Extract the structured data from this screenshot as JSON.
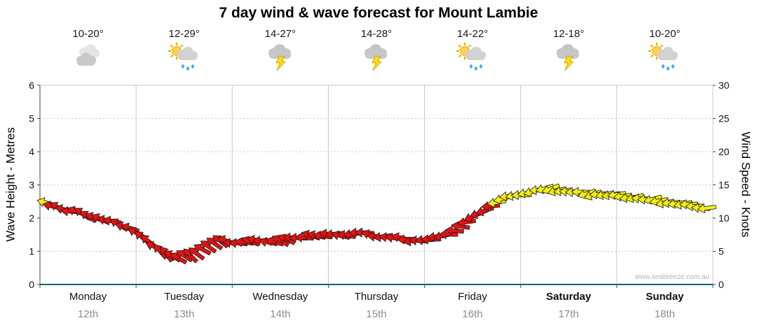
{
  "chart_data": {
    "type": "wind-arrows",
    "title": "7 day wind & wave forecast for Mount Lambie",
    "watermark": "www.seabreeze.com.au",
    "left_axis": {
      "label": "Wave Height - Metres",
      "ticks": [
        0,
        1,
        2,
        3,
        4,
        5,
        6
      ],
      "max": 6
    },
    "right_axis": {
      "label": "Wind Speed - Knots",
      "ticks": [
        0,
        5,
        10,
        15,
        20,
        25,
        30
      ],
      "max": 30
    },
    "colors": {
      "r": "#e41212",
      "y": "#f2ee12"
    },
    "days": [
      {
        "name": "Monday",
        "date": "12th",
        "temp": "10-20°",
        "icon": "cloudy",
        "bold": false
      },
      {
        "name": "Tuesday",
        "date": "13th",
        "temp": "12-29°",
        "icon": "sun-showers",
        "bold": false
      },
      {
        "name": "Wednesday",
        "date": "14th",
        "temp": "14-27°",
        "icon": "thunderstorm",
        "bold": false
      },
      {
        "name": "Thursday",
        "date": "15th",
        "temp": "14-28°",
        "icon": "thunderstorm",
        "bold": false
      },
      {
        "name": "Friday",
        "date": "16th",
        "temp": "14-22°",
        "icon": "sun-showers",
        "bold": false
      },
      {
        "name": "Saturday",
        "date": "17th",
        "temp": "12-18°",
        "icon": "thunderstorm",
        "bold": true
      },
      {
        "name": "Sunday",
        "date": "18th",
        "temp": "10-20°",
        "icon": "sun-showers",
        "bold": true
      }
    ],
    "points": [
      {
        "k": 12.3,
        "d": 195,
        "c": "y"
      },
      {
        "k": 11.6,
        "d": 210,
        "c": "r"
      },
      {
        "k": 11.0,
        "d": 185,
        "c": "r"
      },
      {
        "k": 10.7,
        "d": 215,
        "c": "r"
      },
      {
        "k": 10.1,
        "d": 200,
        "c": "r"
      },
      {
        "k": 9.7,
        "d": 190,
        "c": "r"
      },
      {
        "k": 9.1,
        "d": 212,
        "c": "r"
      },
      {
        "k": 8.5,
        "d": 198,
        "c": "r"
      },
      {
        "k": 7.1,
        "d": 220,
        "c": "r"
      },
      {
        "k": 5.7,
        "d": 205,
        "c": "r"
      },
      {
        "k": 4.6,
        "d": 232,
        "c": "r"
      },
      {
        "k": 4.0,
        "d": 210,
        "c": "r"
      },
      {
        "k": 4.4,
        "d": 225,
        "c": "r"
      },
      {
        "k": 5.3,
        "d": 208,
        "c": "r"
      },
      {
        "k": 6.2,
        "d": 215,
        "c": "r"
      },
      {
        "k": 6.6,
        "d": 200,
        "c": "r"
      },
      {
        "k": 6.2,
        "d": 185,
        "c": "r"
      },
      {
        "k": 6.5,
        "d": 200,
        "c": "r"
      },
      {
        "k": 6.6,
        "d": 178,
        "c": "r"
      },
      {
        "k": 6.4,
        "d": 195,
        "c": "r"
      },
      {
        "k": 6.8,
        "d": 205,
        "c": "r"
      },
      {
        "k": 7.0,
        "d": 182,
        "c": "r"
      },
      {
        "k": 7.4,
        "d": 198,
        "c": "r"
      },
      {
        "k": 7.3,
        "d": 188,
        "c": "r"
      },
      {
        "k": 7.6,
        "d": 175,
        "c": "r"
      },
      {
        "k": 7.4,
        "d": 190,
        "c": "r"
      },
      {
        "k": 7.8,
        "d": 180,
        "c": "r"
      },
      {
        "k": 7.5,
        "d": 196,
        "c": "r"
      },
      {
        "k": 7.2,
        "d": 172,
        "c": "r"
      },
      {
        "k": 7.0,
        "d": 188,
        "c": "r"
      },
      {
        "k": 6.8,
        "d": 178,
        "c": "r"
      },
      {
        "k": 6.6,
        "d": 185,
        "c": "r"
      },
      {
        "k": 6.8,
        "d": 180,
        "c": "r"
      },
      {
        "k": 7.3,
        "d": 168,
        "c": "r"
      },
      {
        "k": 8.1,
        "d": 185,
        "c": "r"
      },
      {
        "k": 9.4,
        "d": 172,
        "c": "r"
      },
      {
        "k": 10.7,
        "d": 160,
        "c": "r"
      },
      {
        "k": 11.8,
        "d": 175,
        "c": "r"
      },
      {
        "k": 12.9,
        "d": 165,
        "c": "y"
      },
      {
        "k": 13.4,
        "d": 170,
        "c": "y"
      },
      {
        "k": 13.8,
        "d": 168,
        "c": "y"
      },
      {
        "k": 14.2,
        "d": 178,
        "c": "y"
      },
      {
        "k": 14.4,
        "d": 158,
        "c": "y"
      },
      {
        "k": 14.1,
        "d": 172,
        "c": "y"
      },
      {
        "k": 13.9,
        "d": 180,
        "c": "y"
      },
      {
        "k": 13.7,
        "d": 162,
        "c": "y"
      },
      {
        "k": 13.6,
        "d": 175,
        "c": "y"
      },
      {
        "k": 13.5,
        "d": 170,
        "c": "y"
      },
      {
        "k": 13.3,
        "d": 172,
        "c": "y"
      },
      {
        "k": 13.1,
        "d": 165,
        "c": "y"
      },
      {
        "k": 12.8,
        "d": 180,
        "c": "y"
      },
      {
        "k": 12.6,
        "d": 170,
        "c": "y"
      },
      {
        "k": 12.3,
        "d": 175,
        "c": "y"
      },
      {
        "k": 12.1,
        "d": 168,
        "c": "y"
      },
      {
        "k": 11.8,
        "d": 178,
        "c": "y"
      },
      {
        "k": 11.5,
        "d": 172,
        "c": "y"
      }
    ]
  }
}
